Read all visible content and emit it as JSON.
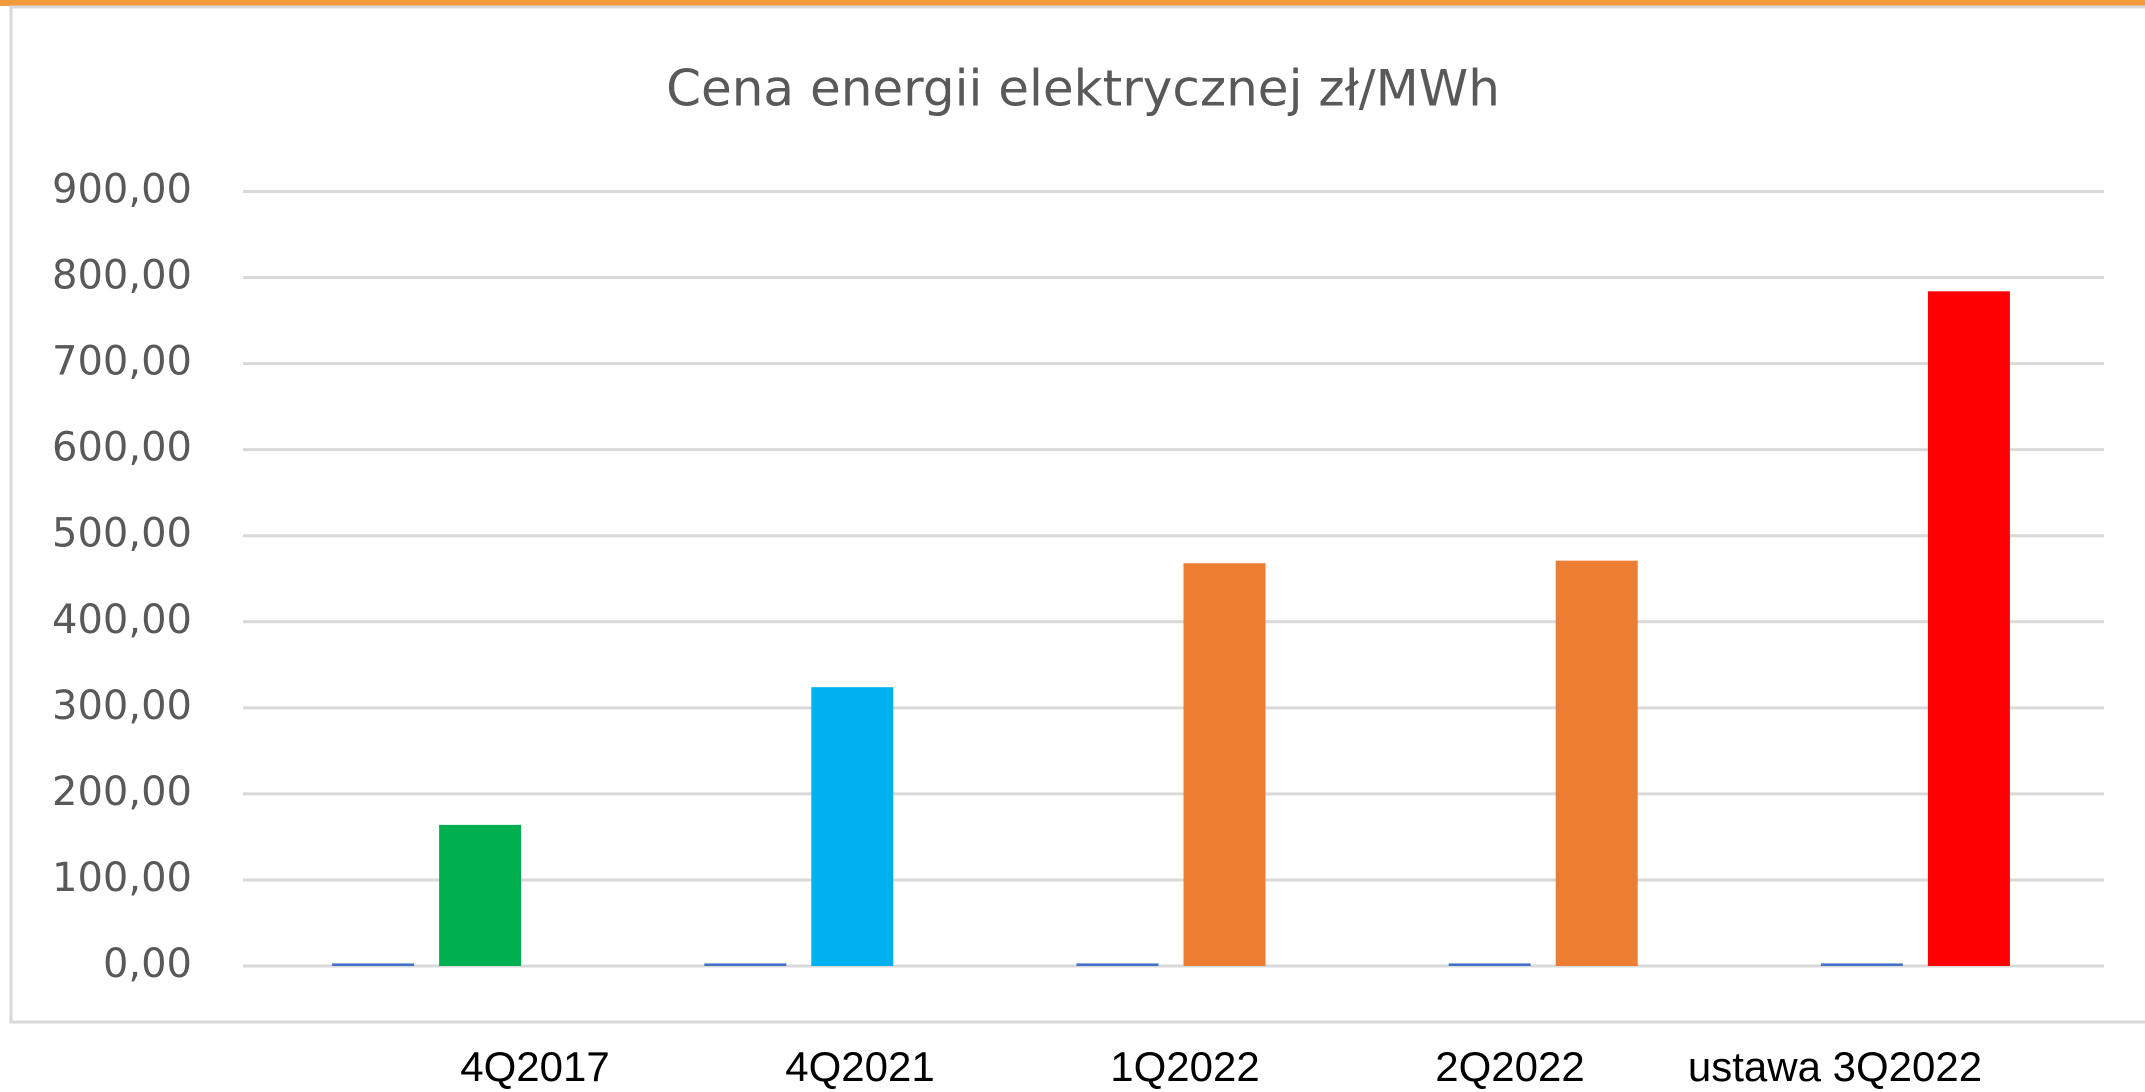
{
  "chart_data": {
    "type": "bar",
    "title": "Cena energii elektrycznej zł/MWh",
    "categories": [
      "4Q2017",
      "4Q2021",
      "1Q2022",
      "2Q2022",
      "ustawa 3Q2022"
    ],
    "series": [
      {
        "color": "#4472c4",
        "values": [
          3,
          3,
          3,
          3,
          3
        ]
      },
      {
        "colors": [
          "#00b050",
          "#00b0f0",
          "#ed7d31",
          "#ed7d31",
          "#ff0000"
        ],
        "values": [
          164,
          324,
          468,
          471,
          784
        ]
      }
    ],
    "ylim": [
      0,
      900
    ],
    "yticks": [
      {
        "value": 0,
        "label": "0,00"
      },
      {
        "value": 100,
        "label": "100,00"
      },
      {
        "value": 200,
        "label": "200,00"
      },
      {
        "value": 300,
        "label": "300,00"
      },
      {
        "value": 400,
        "label": "400,00"
      },
      {
        "value": 500,
        "label": "500,00"
      },
      {
        "value": 600,
        "label": "600,00"
      },
      {
        "value": 700,
        "label": "700,00"
      },
      {
        "value": 800,
        "label": "800,00"
      },
      {
        "value": 900,
        "label": "900,00"
      }
    ],
    "grid": true
  }
}
